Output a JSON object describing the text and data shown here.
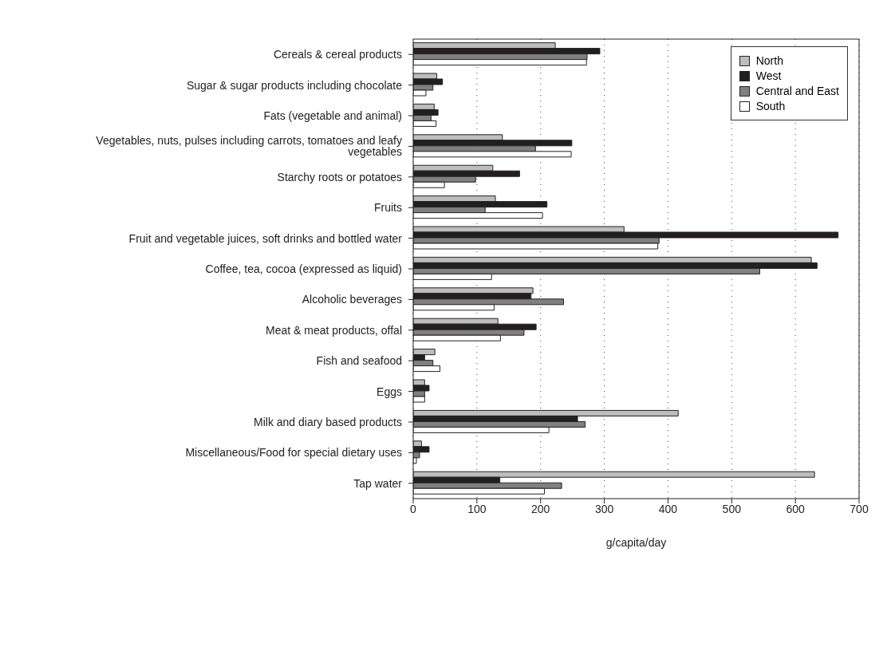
{
  "chart_data": {
    "type": "bar",
    "orientation": "horizontal",
    "xlabel": "g/capita/day",
    "categories": [
      "Cereals & cereal products",
      "Sugar & sugar products including chocolate",
      "Fats (vegetable and animal)",
      "Vegetables, nuts, pulses including carrots, tomatoes and leafy vegetables",
      "Starchy roots or potatoes",
      "Fruits",
      "Fruit and vegetable juices, soft drinks and bottled water",
      "Coffee, tea, cocoa (expressed as liquid)",
      "Alcoholic beverages",
      "Meat & meat products, offal",
      "Fish and seafood",
      "Eggs",
      "Milk and diary based products",
      "Miscellaneous/Food for special dietary uses",
      "Tap water"
    ],
    "series": [
      {
        "name": "North",
        "color": "#bdbdbd",
        "values": [
          223,
          37,
          33,
          140,
          125,
          129,
          331,
          625,
          188,
          133,
          34,
          18,
          416,
          13,
          630
        ]
      },
      {
        "name": "West",
        "color": "#231f20",
        "values": [
          293,
          46,
          39,
          249,
          167,
          210,
          667,
          634,
          185,
          193,
          18,
          25,
          258,
          25,
          136
        ]
      },
      {
        "name": "Central and East",
        "color": "#808080",
        "values": [
          273,
          31,
          28,
          192,
          98,
          113,
          386,
          544,
          236,
          174,
          31,
          18,
          270,
          10,
          233
        ]
      },
      {
        "name": "South",
        "color": "#ffffff",
        "values": [
          272,
          20,
          36,
          248,
          49,
          203,
          384,
          123,
          127,
          137,
          42,
          18,
          213,
          5,
          206
        ]
      }
    ],
    "xlim": [
      0,
      700
    ],
    "xticks": [
      0,
      100,
      200,
      300,
      400,
      500,
      600,
      700
    ],
    "grid": "x",
    "legend": "top right"
  }
}
